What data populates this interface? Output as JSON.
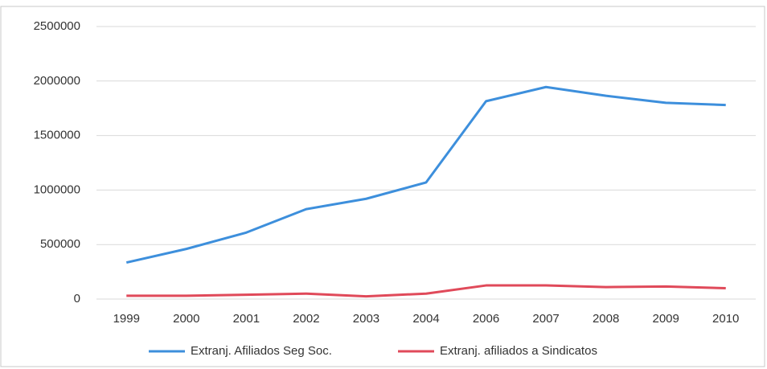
{
  "chart_data": {
    "type": "line",
    "categories": [
      "1999",
      "2000",
      "2001",
      "2002",
      "2003",
      "2004",
      "2006",
      "2007",
      "2008",
      "2009",
      "2010"
    ],
    "series": [
      {
        "name": "Extranj. Afiliados Seg Soc.",
        "color": "#3d8fdc",
        "values": [
          335000,
          460000,
          610000,
          825000,
          920000,
          1070000,
          1815000,
          1945000,
          1865000,
          1800000,
          1780000
        ]
      },
      {
        "name": "Extranj. afiliados a Sindicatos",
        "color": "#e04a5a",
        "values": [
          30000,
          30000,
          40000,
          50000,
          25000,
          50000,
          125000,
          125000,
          110000,
          115000,
          100000
        ]
      }
    ],
    "ylim": [
      0,
      2500000
    ],
    "yticks": [
      0,
      500000,
      1000000,
      1500000,
      2000000,
      2500000
    ],
    "grid": true,
    "legend": "bottom"
  }
}
